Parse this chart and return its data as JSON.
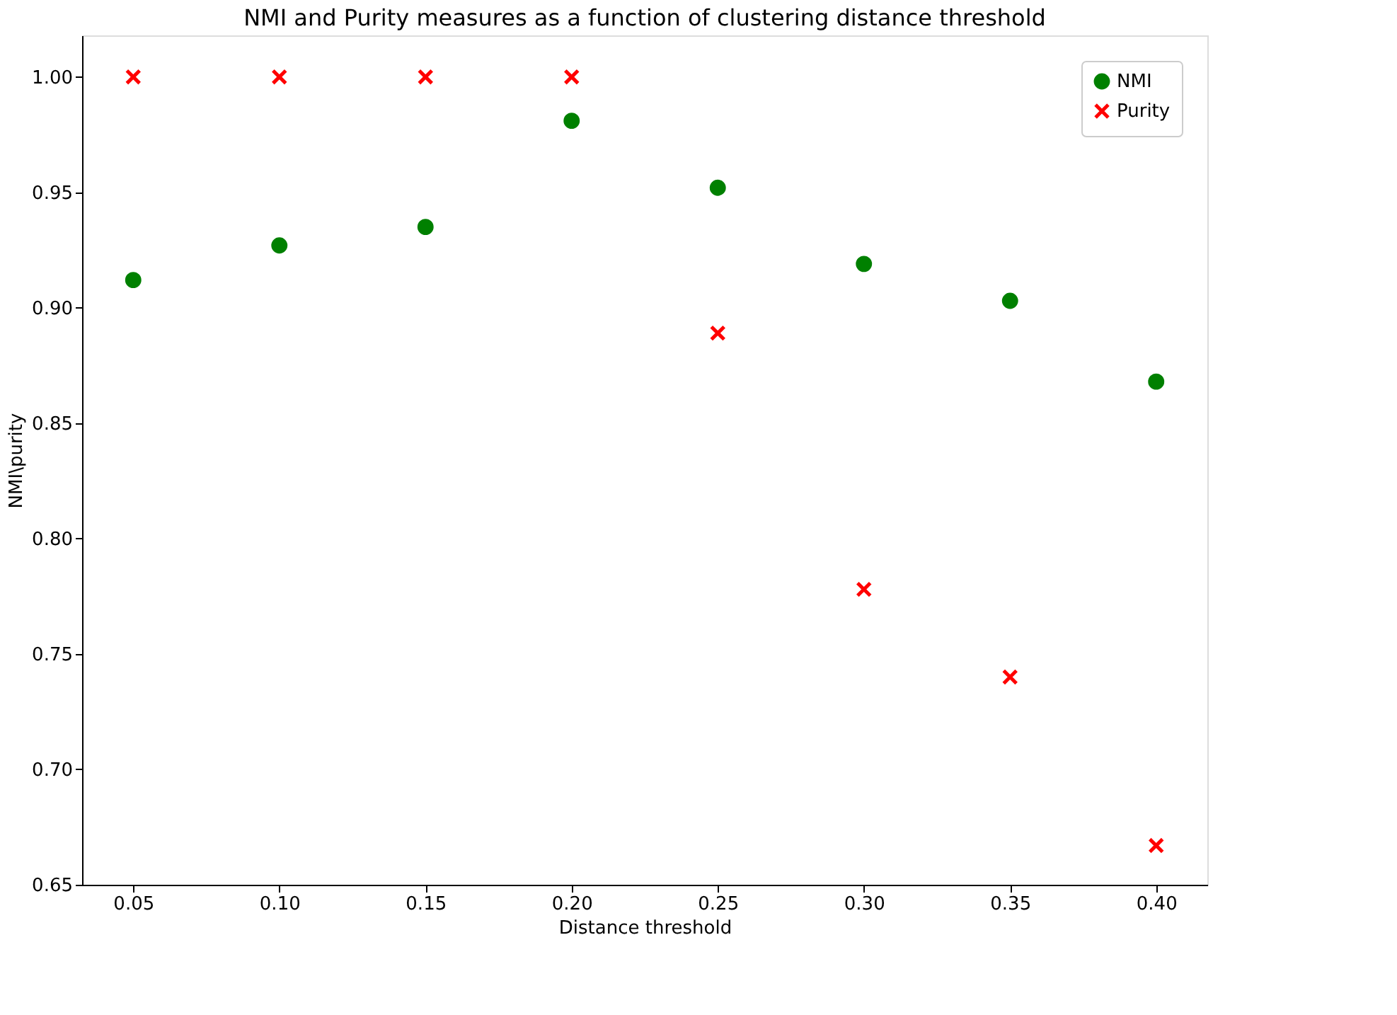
{
  "chart_data": {
    "type": "scatter",
    "title": "NMI and Purity measures as a function of clustering distance threshold",
    "xlabel": "Distance threshold",
    "ylabel": "NMI\\purity",
    "x": [
      0.05,
      0.1,
      0.15,
      0.2,
      0.25,
      0.3,
      0.35,
      0.4
    ],
    "series": [
      {
        "name": "NMI",
        "color": "#008000",
        "marker": "circle",
        "values": [
          0.912,
          0.927,
          0.935,
          0.981,
          0.952,
          0.919,
          0.903,
          0.868
        ]
      },
      {
        "name": "Purity",
        "color": "#ff0000",
        "marker": "cross",
        "values": [
          1.0,
          1.0,
          1.0,
          1.0,
          0.889,
          0.778,
          0.74,
          0.667
        ]
      }
    ],
    "xlim": [
      0.0325,
      0.4175
    ],
    "xticks": [
      {
        "value": 0.05,
        "label": "0.05"
      },
      {
        "value": 0.1,
        "label": "0.10"
      },
      {
        "value": 0.15,
        "label": "0.15"
      },
      {
        "value": 0.2,
        "label": "0.20"
      },
      {
        "value": 0.25,
        "label": "0.25"
      },
      {
        "value": 0.3,
        "label": "0.30"
      },
      {
        "value": 0.35,
        "label": "0.35"
      },
      {
        "value": 0.4,
        "label": "0.40"
      }
    ],
    "ylim": [
      0.65,
      1.018
    ],
    "yticks": [
      {
        "value": 0.65,
        "label": "0.65"
      },
      {
        "value": 0.7,
        "label": "0.70"
      },
      {
        "value": 0.75,
        "label": "0.75"
      },
      {
        "value": 0.8,
        "label": "0.80"
      },
      {
        "value": 0.85,
        "label": "0.85"
      },
      {
        "value": 0.9,
        "label": "0.90"
      },
      {
        "value": 0.95,
        "label": "0.95"
      },
      {
        "value": 1.0,
        "label": "1.00"
      }
    ],
    "grid": false,
    "legend": "top right"
  }
}
